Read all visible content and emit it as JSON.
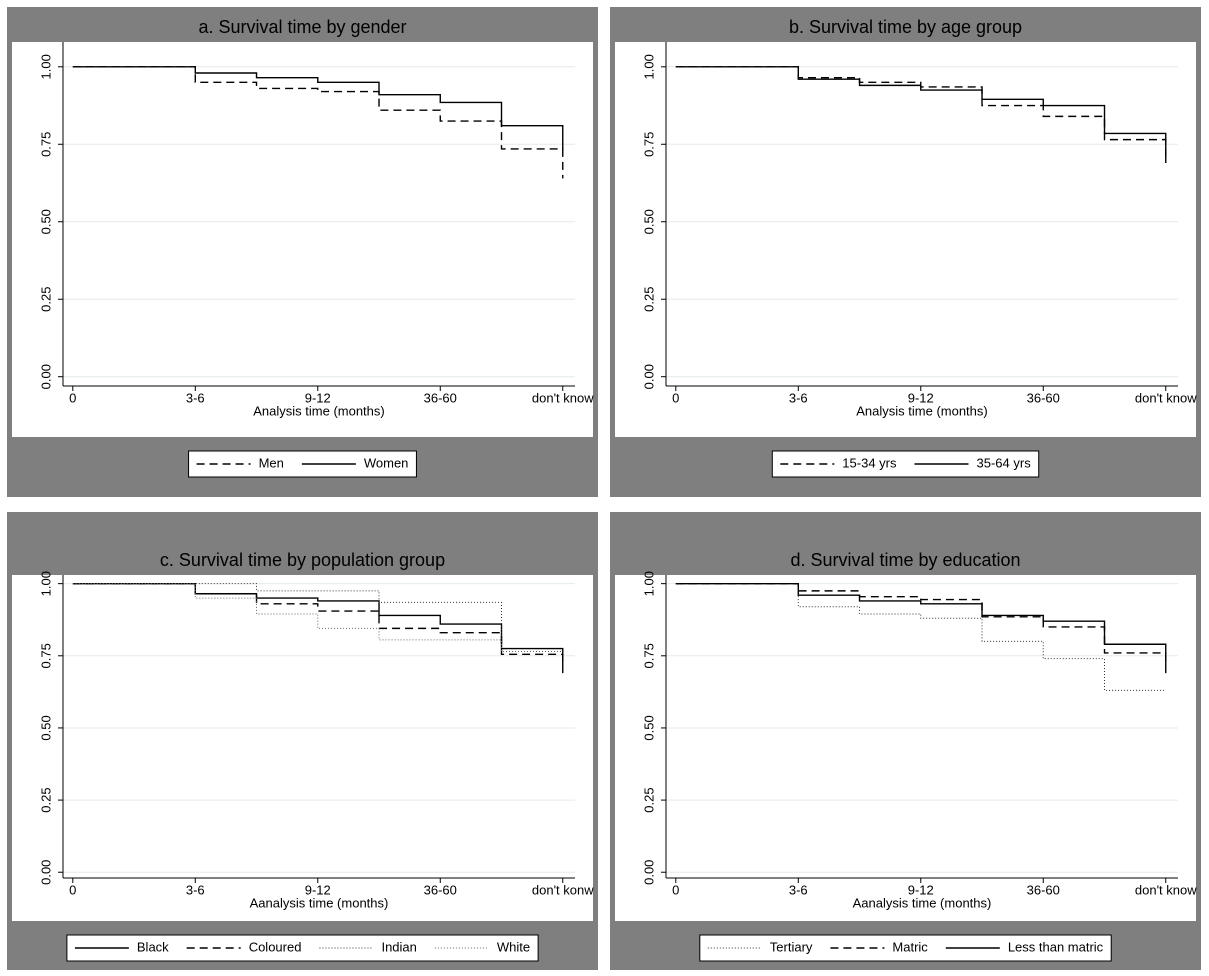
{
  "chart_data": [
    {
      "type": "line",
      "title": "a. Survival time by gender",
      "x_label": "Analysis time (months)",
      "xlim": [
        -0.08,
        4.1
      ],
      "ylim": [
        -0.03,
        1.08
      ],
      "xticks": [
        0,
        {
          "value": 1,
          "label": "3-6"
        },
        {
          "value": 2,
          "label": "9-12"
        },
        {
          "value": 3,
          "label": "36-60"
        },
        {
          "value": 4,
          "label": "don't know"
        }
      ],
      "yticks": [
        {
          "value": 0,
          "label": "0.00"
        },
        {
          "value": 0.25,
          "label": "0.25"
        },
        {
          "value": 0.5,
          "label": "0.50"
        },
        {
          "value": 0.75,
          "label": "0.75"
        },
        {
          "value": 1,
          "label": "1.00"
        }
      ],
      "grid": true,
      "series": [
        {
          "name": "Men",
          "color": "#000000",
          "style": "dashed",
          "x": [
            0,
            1,
            1.5,
            2,
            2.5,
            3,
            3.5,
            4
          ],
          "values": [
            1,
            0.95,
            0.93,
            0.92,
            0.86,
            0.825,
            0.735,
            0.64
          ]
        },
        {
          "name": "Women",
          "color": "#000000",
          "style": "solid",
          "x": [
            0,
            1,
            1.5,
            2,
            2.5,
            3,
            3.5,
            4
          ],
          "values": [
            1,
            0.98,
            0.965,
            0.95,
            0.91,
            0.885,
            0.81,
            0.73
          ]
        }
      ]
    },
    {
      "type": "line",
      "title": "b. Survival time by age group",
      "x_label": "Analysis time (months)",
      "xlim": [
        -0.08,
        4.1
      ],
      "ylim": [
        -0.03,
        1.08
      ],
      "xticks": [
        0,
        {
          "value": 1,
          "label": "3-6"
        },
        {
          "value": 2,
          "label": "9-12"
        },
        {
          "value": 3,
          "label": "36-60"
        },
        {
          "value": 4,
          "label": "don't know"
        }
      ],
      "yticks": [
        {
          "value": 0,
          "label": "0.00"
        },
        {
          "value": 0.25,
          "label": "0.25"
        },
        {
          "value": 0.5,
          "label": "0.50"
        },
        {
          "value": 0.75,
          "label": "0.75"
        },
        {
          "value": 1,
          "label": "1.00"
        }
      ],
      "grid": true,
      "series": [
        {
          "name": "15-34 yrs",
          "color": "#000000",
          "style": "dashed",
          "x": [
            0,
            1,
            1.5,
            2,
            2.5,
            3,
            3.5,
            4
          ],
          "values": [
            1,
            0.965,
            0.95,
            0.935,
            0.875,
            0.84,
            0.765,
            0.69
          ]
        },
        {
          "name": "35-64 yrs",
          "color": "#000000",
          "style": "solid",
          "x": [
            0,
            1,
            1.5,
            2,
            2.5,
            3,
            3.5,
            4
          ],
          "values": [
            1,
            0.96,
            0.94,
            0.925,
            0.895,
            0.875,
            0.785,
            0.69
          ]
        }
      ]
    },
    {
      "type": "line",
      "title": "c. Survival time by population group",
      "x_label": "Aanalysis time (months)",
      "xlim": [
        -0.08,
        4.1
      ],
      "ylim": [
        -0.02,
        1.03
      ],
      "xticks": [
        0,
        {
          "value": 1,
          "label": "3-6"
        },
        {
          "value": 2,
          "label": "9-12"
        },
        {
          "value": 3,
          "label": "36-60"
        },
        {
          "value": 4,
          "label": "don't konw"
        }
      ],
      "yticks": [
        {
          "value": 0,
          "label": "0.00"
        },
        {
          "value": 0.25,
          "label": "0.25"
        },
        {
          "value": 0.5,
          "label": "0.50"
        },
        {
          "value": 0.75,
          "label": "0.75"
        },
        {
          "value": 1,
          "label": "1.00"
        }
      ],
      "grid": true,
      "series": [
        {
          "name": "Black",
          "color": "#000000",
          "style": "solid",
          "x": [
            0,
            1,
            1.5,
            2,
            2.5,
            3,
            3.5,
            4
          ],
          "values": [
            1,
            0.965,
            0.95,
            0.94,
            0.89,
            0.86,
            0.775,
            0.69
          ]
        },
        {
          "name": "Coloured",
          "color": "#000000",
          "style": "dashed",
          "x": [
            0,
            1,
            1.5,
            2,
            2.5,
            3,
            3.5,
            4
          ],
          "values": [
            1,
            0.965,
            0.93,
            0.905,
            0.845,
            0.83,
            0.755,
            0.72
          ]
        },
        {
          "name": "Indian",
          "color": "#333333",
          "style": "dotted",
          "x": [
            0,
            1,
            1.5,
            2,
            2.5,
            3,
            3.5,
            4
          ],
          "values": [
            1,
            1,
            0.975,
            0.975,
            0.935,
            0.935,
            0.765,
            0.765
          ]
        },
        {
          "name": "White",
          "color": "#666666",
          "style": "dotted",
          "x": [
            0,
            1,
            1.5,
            2,
            2.5,
            3,
            3.5,
            4
          ],
          "values": [
            1,
            0.95,
            0.895,
            0.845,
            0.805,
            0.805,
            0.765,
            0.765
          ]
        }
      ]
    },
    {
      "type": "line",
      "title": "d. Survival time by education",
      "x_label": "Aanalysis time (months)",
      "xlim": [
        -0.08,
        4.1
      ],
      "ylim": [
        -0.02,
        1.03
      ],
      "xticks": [
        0,
        {
          "value": 1,
          "label": "3-6"
        },
        {
          "value": 2,
          "label": "9-12"
        },
        {
          "value": 3,
          "label": "36-60"
        },
        {
          "value": 4,
          "label": "don't know"
        }
      ],
      "yticks": [
        {
          "value": 0,
          "label": "0.00"
        },
        {
          "value": 0.25,
          "label": "0.25"
        },
        {
          "value": 0.5,
          "label": "0.50"
        },
        {
          "value": 0.75,
          "label": "0.75"
        },
        {
          "value": 1,
          "label": "1.00"
        }
      ],
      "grid": true,
      "series": [
        {
          "name": "Tertiary",
          "color": "#333333",
          "style": "dotted",
          "x": [
            0,
            1,
            1.5,
            2,
            2.5,
            3,
            3.5,
            4
          ],
          "values": [
            1,
            0.92,
            0.895,
            0.88,
            0.8,
            0.74,
            0.63,
            0.63
          ]
        },
        {
          "name": "Matric",
          "color": "#000000",
          "style": "dashed",
          "x": [
            0,
            1,
            1.5,
            2,
            2.5,
            3,
            3.5,
            4
          ],
          "values": [
            1,
            0.975,
            0.955,
            0.945,
            0.885,
            0.85,
            0.76,
            0.72
          ]
        },
        {
          "name": "Less than matric",
          "color": "#000000",
          "style": "solid",
          "x": [
            0,
            1,
            1.5,
            2,
            2.5,
            3,
            3.5,
            4
          ],
          "values": [
            1,
            0.96,
            0.94,
            0.93,
            0.89,
            0.87,
            0.79,
            0.69
          ]
        }
      ]
    }
  ]
}
